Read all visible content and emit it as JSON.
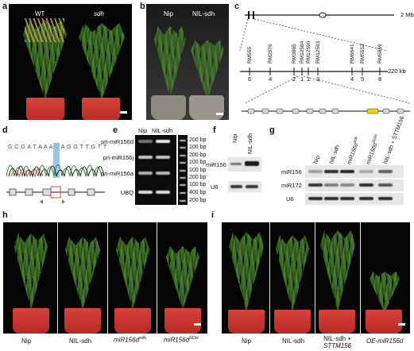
{
  "panels": {
    "a": "a",
    "b": "b",
    "c": "c",
    "d": "d",
    "e": "e",
    "f": "f",
    "g": "g",
    "h": "h",
    "i": "i"
  },
  "a": {
    "left": "WT",
    "right": "sdh"
  },
  "b": {
    "left": "Nip",
    "right": "NIL-sdh"
  },
  "c": {
    "top_scale": "2 Mb",
    "mid_scale": "220 kb",
    "markers": [
      "RM555",
      "RM2576",
      "RM3865",
      "RM12584",
      "RM12590",
      "RM12593",
      "RM6641",
      "RM5553",
      "RM5869"
    ],
    "counts": [
      "6",
      "4",
      "2",
      "1",
      "1",
      "3",
      "4",
      "5",
      "8"
    ]
  },
  "d": {
    "sequence": "G C G A T A A A C A G G T T G T T"
  },
  "e": {
    "cols": [
      "Nip",
      "NIL-sdh"
    ],
    "rows": [
      "pri-miR156d",
      "pri-miR156j",
      "pri-miR156a",
      "UBQ"
    ],
    "ladder": [
      "200 bp",
      "100 bp",
      "200 bp",
      "100 bp",
      "100 bp",
      "200 bp",
      "100 bp",
      "400 bp",
      "200 bp"
    ]
  },
  "f": {
    "cols": [
      "Nip",
      "NIL-sdh"
    ],
    "rows": [
      "miR156",
      "U6"
    ]
  },
  "g": {
    "cols": [
      "Nip",
      "NIL-sdh",
      "miR156d",
      "miR156d",
      "NIL-sdh + STTM156"
    ],
    "col_sup": [
      "sdh",
      "SDH"
    ],
    "rows": [
      "miR156",
      "miR172",
      "U6"
    ]
  },
  "h": {
    "labels": [
      "Nip",
      "NIL-sdh",
      "miR156d",
      "miR156d"
    ],
    "sup": [
      "sdh",
      "SDH"
    ]
  },
  "i": {
    "labels": [
      "Nip",
      "NIL-sdh",
      "NIL-sdh +",
      "STTM156",
      "OE-miR156d"
    ]
  },
  "colors": {
    "highlight": "#f2d40a",
    "selected": "#7fb2e0",
    "pot": "#c9302c"
  }
}
